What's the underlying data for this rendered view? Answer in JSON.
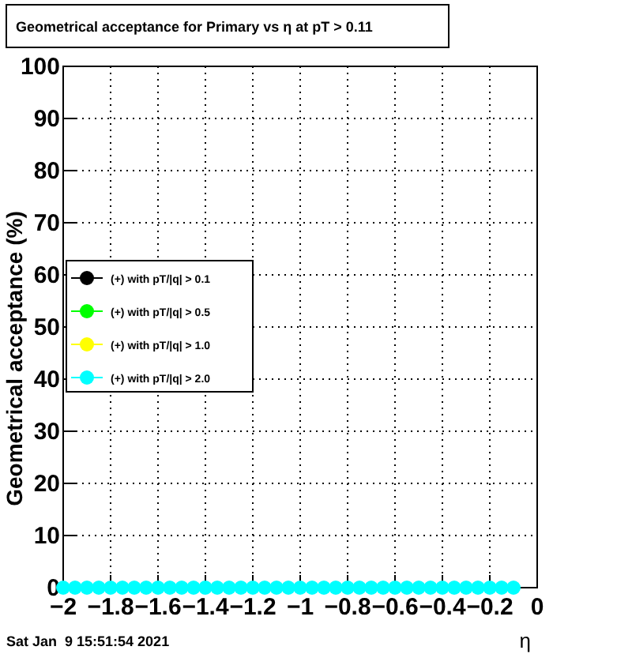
{
  "chart_data": {
    "type": "scatter",
    "title": "Geometrical acceptance for Primary vs  η at pT > 0.11",
    "xlabel": "η",
    "ylabel": "Geometrical acceptance (%)",
    "x": [
      -2,
      -1.95,
      -1.9,
      -1.85,
      -1.8,
      -1.75,
      -1.7,
      -1.65,
      -1.6,
      -1.55,
      -1.5,
      -1.45,
      -1.4,
      -1.35,
      -1.3,
      -1.25,
      -1.2,
      -1.15,
      -1.1,
      -1.05,
      -1,
      -0.95,
      -0.9,
      -0.85,
      -0.8,
      -0.75,
      -0.7,
      -0.65,
      -0.6,
      -0.55,
      -0.5,
      -0.45,
      -0.4,
      -0.35,
      -0.3,
      -0.25,
      -0.2,
      -0.15,
      -0.1
    ],
    "series": [
      {
        "name": "(+) with pT/|q| > 0.1",
        "color": "#000000",
        "values": [
          null,
          null,
          null,
          null,
          null,
          null,
          null,
          null,
          null,
          null,
          null,
          null,
          null,
          null,
          null,
          null,
          null,
          null,
          null,
          null,
          null,
          null,
          null,
          null,
          null,
          null,
          null,
          null,
          null,
          null,
          null,
          null,
          null,
          null,
          null,
          null,
          null,
          null,
          null
        ]
      },
      {
        "name": "(+) with pT/|q| > 0.5",
        "color": "#00ff00",
        "values": [
          null,
          null,
          null,
          null,
          null,
          null,
          null,
          null,
          null,
          null,
          null,
          null,
          null,
          null,
          null,
          null,
          null,
          null,
          null,
          null,
          null,
          null,
          null,
          null,
          null,
          null,
          null,
          null,
          null,
          null,
          null,
          null,
          null,
          null,
          null,
          null,
          null,
          null,
          null
        ]
      },
      {
        "name": "(+) with pT/|q| > 1.0",
        "color": "#ffff00",
        "values": [
          null,
          null,
          null,
          null,
          null,
          null,
          null,
          null,
          null,
          null,
          null,
          null,
          null,
          null,
          null,
          null,
          null,
          null,
          null,
          null,
          null,
          null,
          null,
          null,
          null,
          null,
          null,
          null,
          null,
          null,
          null,
          null,
          null,
          null,
          null,
          null,
          null,
          null,
          null
        ]
      },
      {
        "name": "(+) with pT/|q| > 2.0",
        "color": "#00ffff",
        "values": [
          0,
          0,
          0,
          0,
          0,
          0,
          0,
          0,
          0,
          0,
          0,
          0,
          0,
          0,
          0,
          0,
          0,
          0,
          0,
          0,
          0,
          0,
          0,
          0,
          0,
          0,
          0,
          0,
          0,
          0,
          0,
          0,
          0,
          0,
          0,
          0,
          0,
          0,
          0
        ]
      }
    ],
    "xlim": [
      -2,
      0
    ],
    "xticks": [
      -2,
      -1.8,
      -1.6,
      -1.4,
      -1.2,
      -1,
      -0.8,
      -0.6,
      -0.4,
      -0.2,
      0
    ],
    "ylim": [
      0,
      100
    ],
    "yticks": [
      0,
      10,
      20,
      30,
      40,
      50,
      60,
      70,
      80,
      90,
      100
    ],
    "grid": true,
    "legend": "left",
    "marker": "circle",
    "annotations": [
      "Sat Jan  9 15:51:54 2021"
    ]
  }
}
